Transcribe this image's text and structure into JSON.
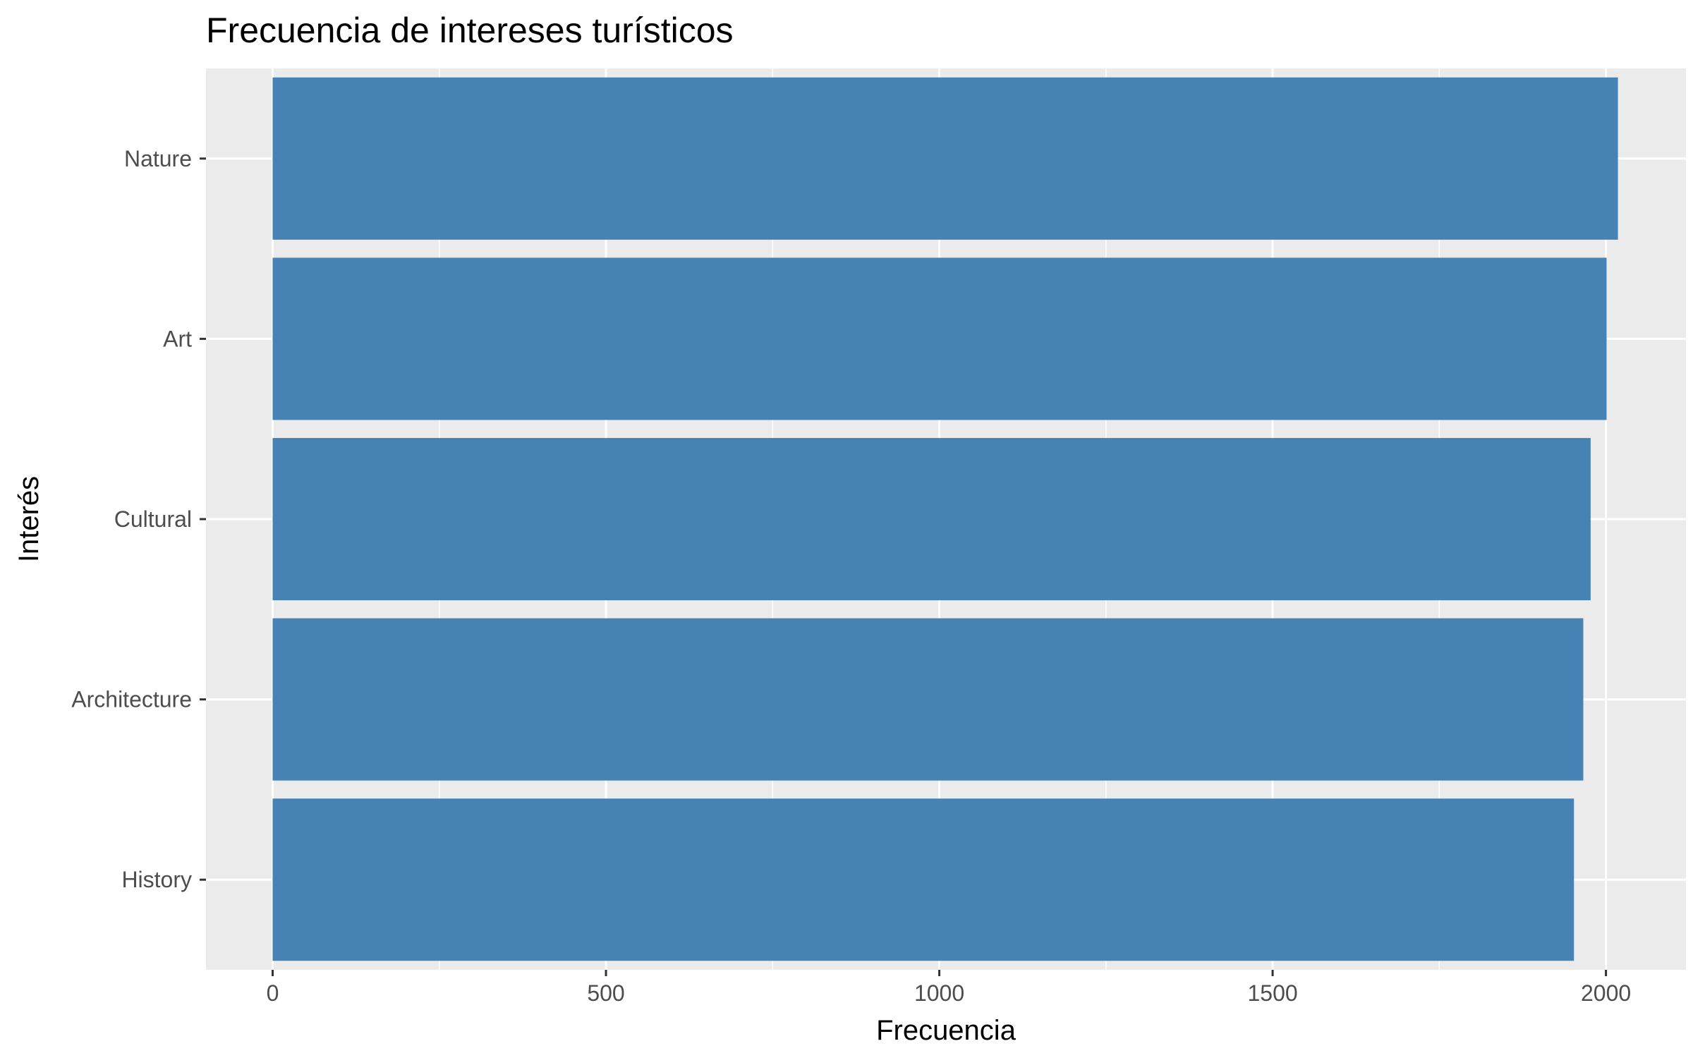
{
  "chart_data": {
    "type": "bar",
    "orientation": "horizontal",
    "title": "Frecuencia de intereses turísticos",
    "xlabel": "Frecuencia",
    "ylabel": "Interés",
    "categories": [
      "Nature",
      "Art",
      "Cultural",
      "Architecture",
      "History"
    ],
    "values": [
      2018,
      2001,
      1977,
      1966,
      1952
    ],
    "xticks": [
      0,
      500,
      1000,
      1500,
      2000
    ],
    "xlim": [
      -100,
      2120
    ],
    "grid": true,
    "legend": "none",
    "colors": {
      "bar": "#4682B4",
      "panel": "#EBEBEB",
      "grid": "#FFFFFF",
      "tick": "#333333"
    }
  }
}
